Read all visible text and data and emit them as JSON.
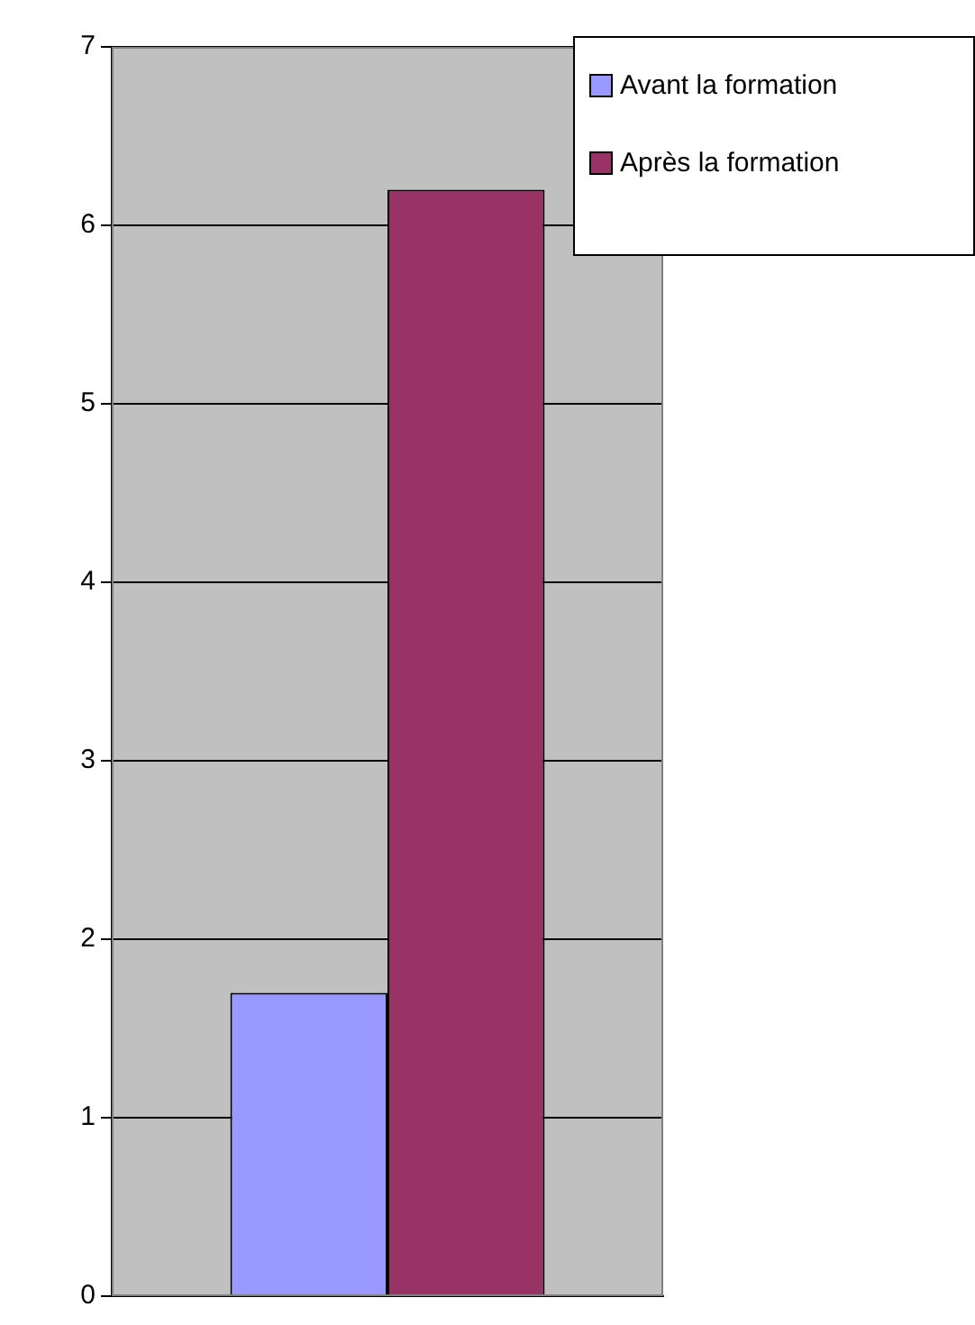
{
  "chart_data": {
    "type": "bar",
    "categories": [
      null
    ],
    "series": [
      {
        "name": "Avant la formation",
        "color": "#9999ff",
        "values": [
          1.7
        ]
      },
      {
        "name": "Après la formation",
        "color": "#993366",
        "values": [
          6.2
        ]
      }
    ],
    "ylim": [
      0,
      7
    ],
    "yticks": [
      0,
      1,
      2,
      3,
      4,
      5,
      6,
      7
    ],
    "grid": "y",
    "legend": "top right"
  }
}
